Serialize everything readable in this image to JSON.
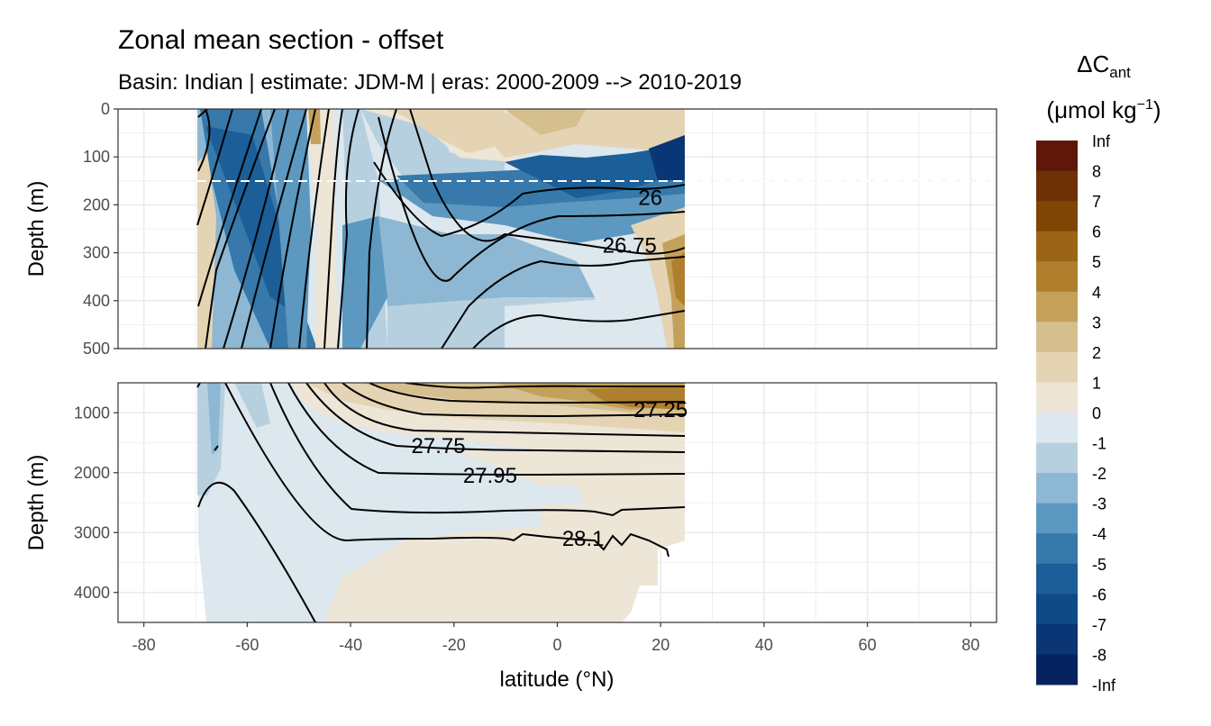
{
  "chart_data": {
    "type": "heatmap",
    "title": "Zonal mean section - offset",
    "subtitle": "Basin: Indian | estimate: JDM-M | eras: 2000-2009 --> 2010-2019",
    "xlabel": "latitude (°N)",
    "ylabel": "Depth (m)",
    "xlim": [
      -85,
      85
    ],
    "x_ticks": [
      "-80",
      "-60",
      "-40",
      "-20",
      "0",
      "20",
      "40",
      "60",
      "80"
    ],
    "data_lat_range": [
      -70,
      24
    ],
    "panels": [
      {
        "name": "upper",
        "ylim": [
          0,
          500
        ],
        "y_ticks": [
          "0",
          "100",
          "200",
          "300",
          "400",
          "500"
        ],
        "dashed_line_depth": 150
      },
      {
        "name": "lower",
        "ylim": [
          500,
          4500
        ],
        "y_ticks": [
          "1000",
          "2000",
          "3000",
          "4000"
        ]
      }
    ],
    "legend": {
      "title_main": "ΔC",
      "title_sub": "ant",
      "unit_prefix": "(μmol kg",
      "unit_sup": "−1",
      "unit_suffix": ")",
      "labels": [
        "Inf",
        "8",
        "7",
        "6",
        "5",
        "4",
        "3",
        "2",
        "1",
        "0",
        "-1",
        "-2",
        "-3",
        "-4",
        "-5",
        "-6",
        "-7",
        "-8",
        "-Inf"
      ],
      "colors": [
        "#5e1708",
        "#6e3005",
        "#7f4504",
        "#9a6516",
        "#b07f2e",
        "#c4a15a",
        "#d5bf8f",
        "#e4d4b4",
        "#ede5d6",
        "#dde7ee",
        "#b7d0e0",
        "#8db7d2",
        "#5c98bf",
        "#3679aa",
        "#1c5e97",
        "#0f4a86",
        "#0a3675",
        "#07235f"
      ]
    },
    "contour_labels": [
      {
        "panel": "upper",
        "text": "26",
        "lat": 18,
        "depth": 185
      },
      {
        "panel": "upper",
        "text": "26.75",
        "lat": 14,
        "depth": 285
      },
      {
        "panel": "lower",
        "text": "27.25",
        "lat": 20,
        "depth": 950
      },
      {
        "panel": "lower",
        "text": "27.75",
        "lat": -23,
        "depth": 1550
      },
      {
        "panel": "lower",
        "text": "27.95",
        "lat": -13,
        "depth": 2050
      },
      {
        "panel": "lower",
        "text": "28.1",
        "lat": 5,
        "depth": 3100
      }
    ],
    "grid": true,
    "legend_position": "right"
  }
}
